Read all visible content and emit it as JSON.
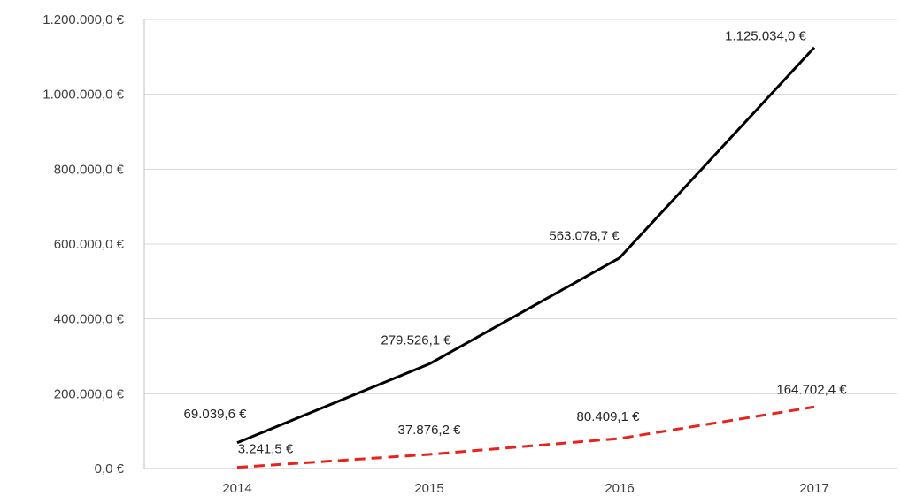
{
  "chart_data": {
    "type": "line",
    "categories": [
      "2014",
      "2015",
      "2016",
      "2017"
    ],
    "ylim": [
      0,
      1200000
    ],
    "y_ticks": [
      {
        "value": 0,
        "label": "0,0 €"
      },
      {
        "value": 200000,
        "label": "200.000,0 €"
      },
      {
        "value": 400000,
        "label": "400.000,0 €"
      },
      {
        "value": 600000,
        "label": "600.000,0 €"
      },
      {
        "value": 800000,
        "label": "800.000,0 €"
      },
      {
        "value": 1000000,
        "label": "1.000.000,0 €"
      },
      {
        "value": 1200000,
        "label": "1.200.000,0 €"
      }
    ],
    "grid": true,
    "series": [
      {
        "values": [
          69039.6,
          279526.1,
          563078.7,
          1125034.0
        ],
        "labels": [
          "69.039,6 €",
          "279.526,1 €",
          "563.078,7 €",
          "1.125.034,0 €"
        ],
        "color": "#000000",
        "dash": false
      },
      {
        "values": [
          3241.5,
          37876.2,
          80409.1,
          164702.4
        ],
        "labels": [
          "3.241,5 €",
          "37.876,2 €",
          "80.409,1 €",
          "164.702,4 €"
        ],
        "color": "#e8231d",
        "dash": true
      }
    ]
  }
}
